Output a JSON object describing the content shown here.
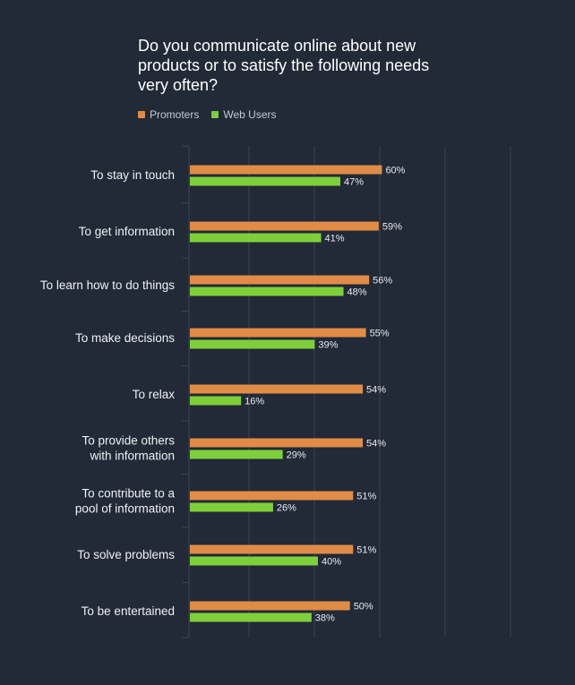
{
  "chart_data": {
    "type": "bar",
    "orientation": "horizontal",
    "title": "Do you communicate online about new products or to satisfy the following needs very often?",
    "categories": [
      "To stay in touch",
      "To get information",
      "To learn how to do things",
      "To make decisions",
      "To relax",
      "To provide others with information",
      "To contribute to a pool of information",
      "To solve problems",
      "To be entertained"
    ],
    "series": [
      {
        "name": "Promoters",
        "color": "#e08c47",
        "values": [
          60,
          59,
          56,
          55,
          54,
          54,
          51,
          51,
          50
        ]
      },
      {
        "name": "Web Users",
        "color": "#7fcf3a",
        "values": [
          47,
          41,
          48,
          39,
          16,
          29,
          26,
          40,
          38
        ]
      }
    ],
    "value_suffix": "%",
    "xlim": [
      0,
      100
    ],
    "grid": true,
    "legend_position": "top-left"
  }
}
